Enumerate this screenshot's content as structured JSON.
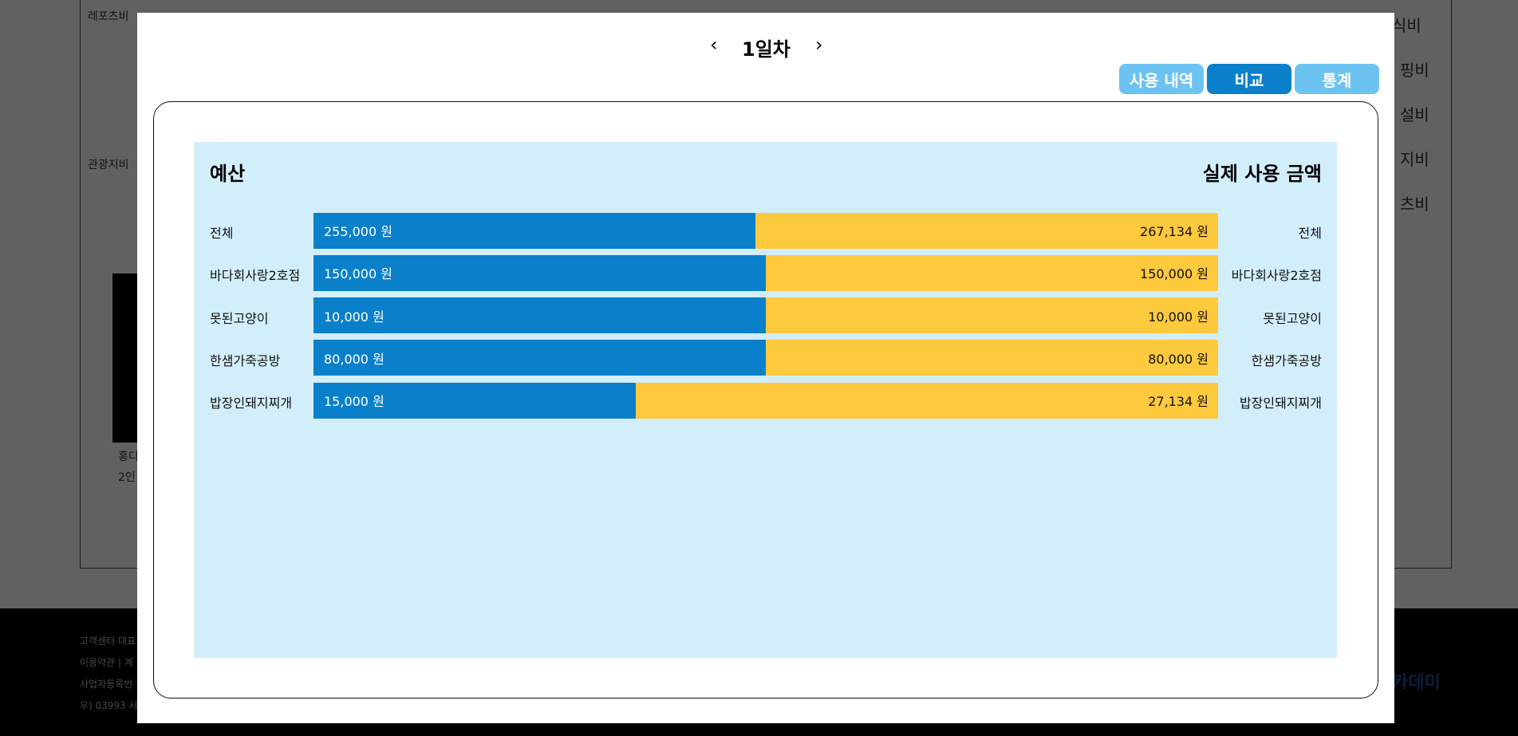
{
  "background": {
    "labels": [
      "레포츠비",
      "관광지비",
      "식비",
      "핑비",
      "설비",
      "지비",
      "츠비",
      "홍디",
      "2인"
    ],
    "footer": [
      "고객센터 대표",
      "이용약관 | 계",
      "사업자등록번",
      "우) 03993 서"
    ],
    "logo": "카데미"
  },
  "modal": {
    "prev": "‹",
    "day": "1일차",
    "next": "›",
    "tabs": [
      "사용 내역",
      "비교",
      "통계"
    ],
    "active_tab": 1
  },
  "chart_data": {
    "type": "split-bar",
    "categories": [
      "전체",
      "바다회사랑2호점",
      "못된고양이",
      "한샘가죽공방",
      "밥장인돼지찌개"
    ],
    "series": [
      {
        "name": "예산",
        "color": "#0a7fca",
        "values": [
          255000,
          150000,
          10000,
          80000,
          15000
        ],
        "value_labels": [
          "255,000 원",
          "150,000 원",
          "10,000 원",
          "80,000 원",
          "15,000 원"
        ]
      },
      {
        "name": "실제 사용 금액",
        "color": "#fdc93d",
        "values": [
          267134,
          150000,
          10000,
          80000,
          27134
        ],
        "value_labels": [
          "267,134 원",
          "150,000 원",
          "10,000 원",
          "80,000 원",
          "27,134 원"
        ]
      }
    ]
  }
}
